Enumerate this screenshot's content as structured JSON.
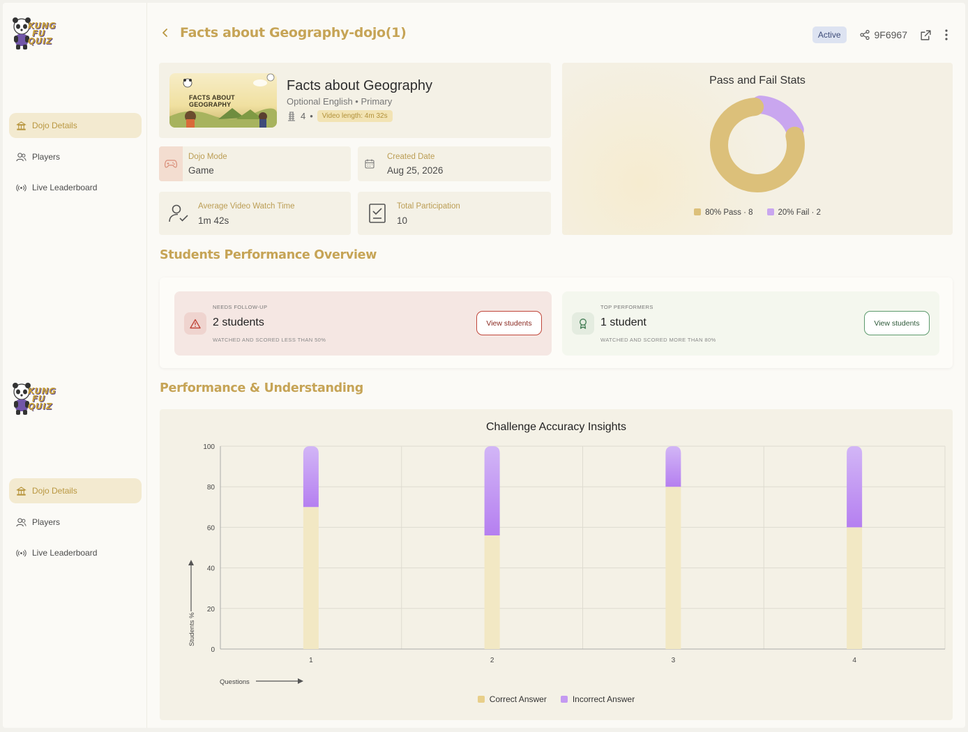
{
  "header": {
    "title": "Facts about Geography-dojo(1)",
    "status": "Active",
    "share_code": "9F6967"
  },
  "sidebar": {
    "logo_text": [
      "KUNG",
      "FU",
      "QUIZ"
    ],
    "items": [
      {
        "label": "Dojo Details",
        "icon": "dojo-icon",
        "active": true
      },
      {
        "label": "Players",
        "icon": "players-icon",
        "active": false
      },
      {
        "label": "Live Leaderboard",
        "icon": "broadcast-icon",
        "active": false
      }
    ]
  },
  "dojo": {
    "thumbnail_title": "FACTS ABOUT GEOGRAPHY",
    "name": "Facts about Geography",
    "subtitle": "Optional English • Primary",
    "level": "4",
    "separator": "•",
    "video_length": "Video length: 4m 32s"
  },
  "info": {
    "mode_label": "Dojo Mode",
    "mode_value": "Game",
    "created_label": "Created Date",
    "created_value": "Aug 25, 2026",
    "watch_label": "Average Video Watch Time",
    "watch_value": "1m 42s",
    "participation_label": "Total Participation",
    "participation_value": "10"
  },
  "pass_fail": {
    "title": "Pass and Fail Stats",
    "pass_legend": "80% Pass · 8",
    "fail_legend": "20% Fail · 2",
    "pass": 8,
    "fail": 2,
    "colors": {
      "pass": "#dcc07a",
      "fail": "#c9a6ef"
    }
  },
  "overview": {
    "section_title": "Students Performance Overview",
    "follow_up": {
      "caption": "NEEDS FOLLOW-UP",
      "count": "2 students",
      "desc": "WATCHED AND SCORED LESS THAN 50%",
      "button": "View students"
    },
    "top": {
      "caption": "TOP PERFORMERS",
      "count": "1 student",
      "desc": "WATCHED AND SCORED MORE THAN 80%",
      "button": "View students"
    }
  },
  "performance": {
    "section_title": "Performance & Understanding"
  },
  "chart_data": {
    "type": "bar",
    "stacked": true,
    "title": "Challenge Accuracy Insights",
    "xlabel": "Questions",
    "ylabel": "Students %",
    "categories": [
      "1",
      "2",
      "3",
      "4"
    ],
    "ylim": [
      0,
      100
    ],
    "yticks": [
      0,
      20,
      40,
      60,
      80,
      100
    ],
    "series": [
      {
        "name": "Correct Answer",
        "values": [
          70,
          56,
          80,
          60
        ],
        "color": "#f2e8c4"
      },
      {
        "name": "Incorrect Answer",
        "values": [
          30,
          44,
          20,
          40
        ],
        "color": "#b57ff0"
      }
    ],
    "legend": "bottom",
    "grid": true
  }
}
